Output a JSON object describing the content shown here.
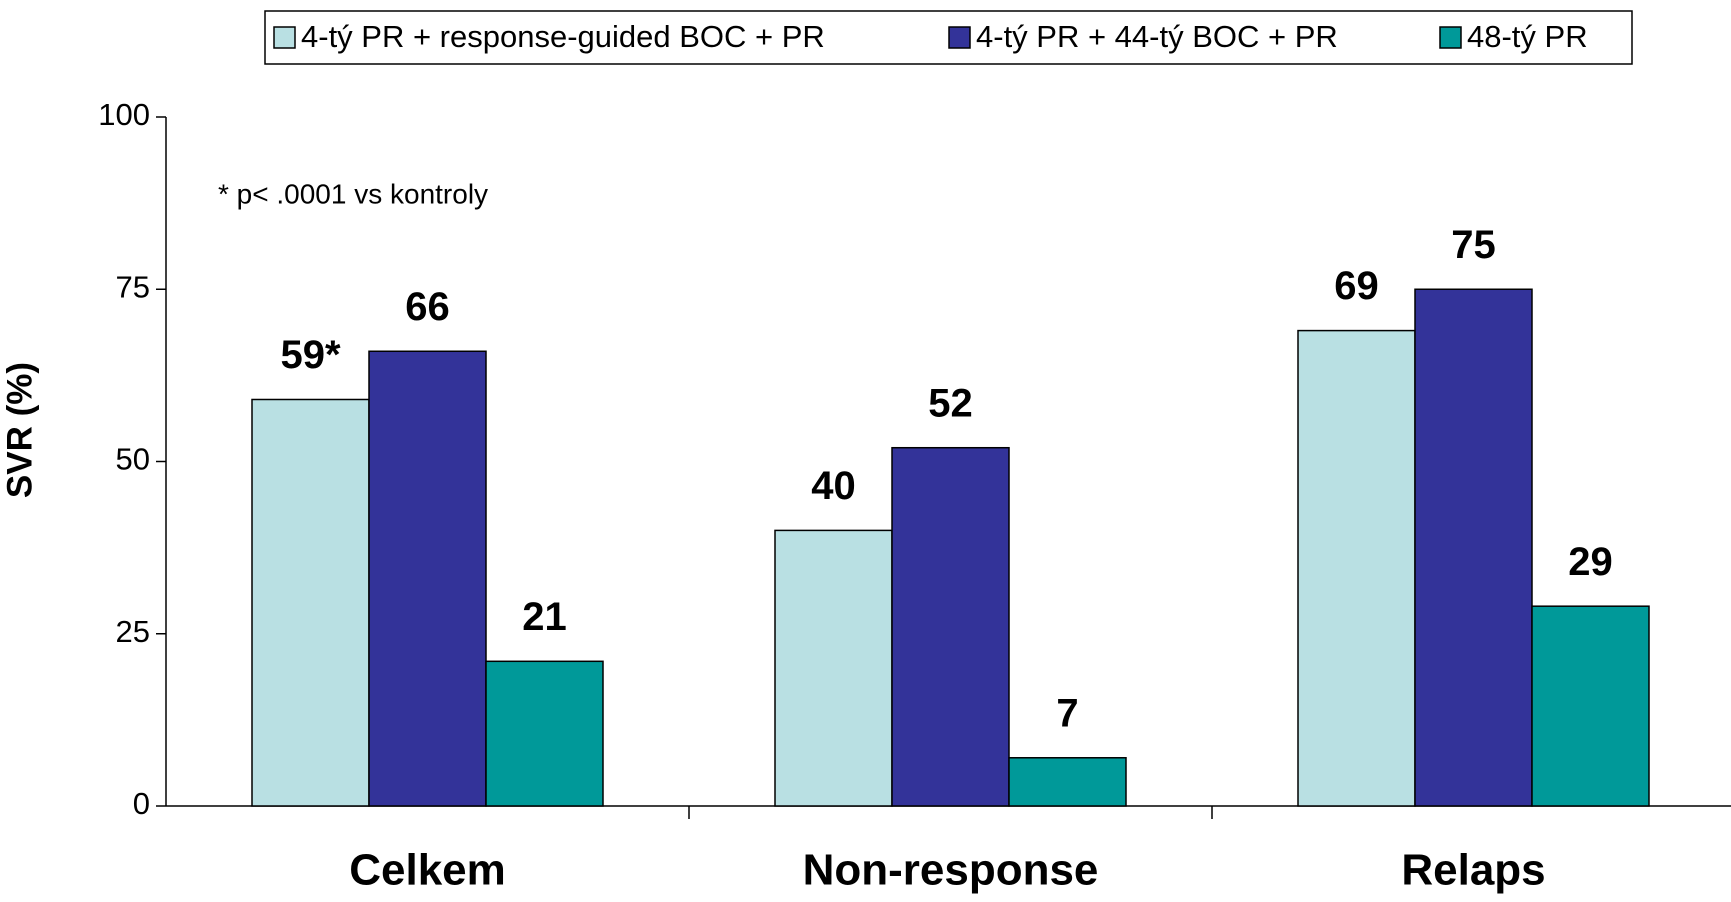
{
  "chart_data": {
    "type": "bar",
    "y_label": "SVR (%)",
    "annotation": "* p< .0001 vs kontroly",
    "categories": [
      "Celkem",
      "Non-response",
      "Relaps"
    ],
    "series": [
      {
        "name": "4-tý PR + response-guided BOC + PR",
        "color": "#b9e0e3",
        "values": [
          59,
          40,
          69
        ],
        "value_labels": [
          "59*",
          "40",
          "69"
        ]
      },
      {
        "name": "4-tý PR + 44-tý BOC + PR",
        "color": "#333399",
        "values": [
          66,
          52,
          75
        ]
      },
      {
        "name": "48-tý PR",
        "color": "#009999",
        "values": [
          21,
          7,
          29
        ]
      }
    ],
    "ylim": [
      0,
      100
    ],
    "yticks": [
      0,
      25,
      50,
      75,
      100
    ],
    "grid": false,
    "legend": "top"
  }
}
